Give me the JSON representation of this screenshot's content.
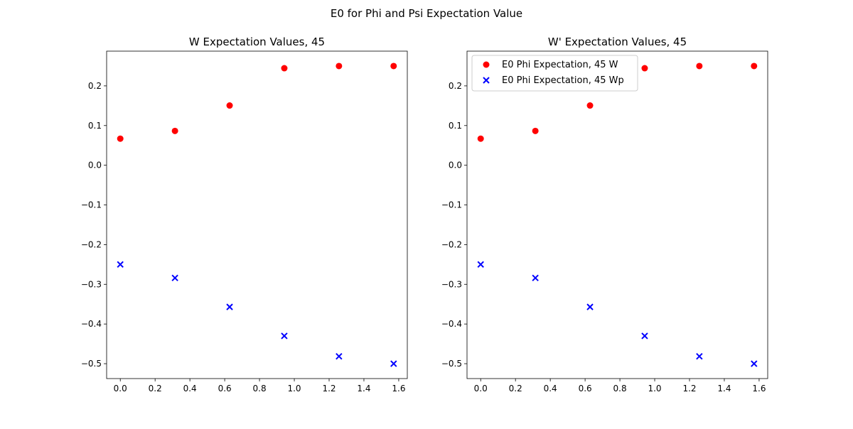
{
  "figure_title": "E0 for Phi and Psi Expectation Value",
  "chart_data": [
    {
      "type": "scatter",
      "title": "W Expectation Values, 45",
      "xlabel": "",
      "ylabel": "",
      "xlim": [
        -0.0785,
        1.6493
      ],
      "ylim": [
        -0.5375,
        0.2875
      ],
      "xticks": [
        "0.0",
        "0.2",
        "0.4",
        "0.6",
        "0.8",
        "1.0",
        "1.2",
        "1.4",
        "1.6"
      ],
      "yticks": [
        "0.2",
        "0.1",
        "0.0",
        "−0.1",
        "−0.2",
        "−0.3",
        "−0.4",
        "−0.5"
      ],
      "grid": false,
      "legend": null,
      "series": [
        {
          "marker": "circle",
          "color": "#ff0000",
          "x": [
            0.0,
            0.3142,
            0.6283,
            0.9425,
            1.2566,
            1.5708
          ],
          "y": [
            0.067,
            0.0865,
            0.1505,
            0.2445,
            0.25,
            0.25
          ]
        },
        {
          "marker": "x",
          "color": "#0000ff",
          "x": [
            0.0,
            0.3142,
            0.6283,
            0.9425,
            1.2566,
            1.5708
          ],
          "y": [
            -0.25,
            -0.284,
            -0.357,
            -0.43,
            -0.4815,
            -0.5
          ]
        }
      ]
    },
    {
      "type": "scatter",
      "title": "W' Expectation Values, 45",
      "xlabel": "",
      "ylabel": "",
      "xlim": [
        -0.0785,
        1.6493
      ],
      "ylim": [
        -0.5375,
        0.2875
      ],
      "xticks": [
        "0.0",
        "0.2",
        "0.4",
        "0.6",
        "0.8",
        "1.0",
        "1.2",
        "1.4",
        "1.6"
      ],
      "yticks": [
        "0.2",
        "0.1",
        "0.0",
        "−0.1",
        "−0.2",
        "−0.3",
        "−0.4",
        "−0.5"
      ],
      "grid": false,
      "legend": "top-left",
      "series": [
        {
          "name": "E0 Phi Expectation, 45 W",
          "marker": "circle",
          "color": "#ff0000",
          "x": [
            0.0,
            0.3142,
            0.6283,
            0.9425,
            1.2566,
            1.5708
          ],
          "y": [
            0.067,
            0.0865,
            0.1505,
            0.2445,
            0.25,
            0.25
          ]
        },
        {
          "name": "E0 Phi Expectation, 45 Wp",
          "marker": "x",
          "color": "#0000ff",
          "x": [
            0.0,
            0.3142,
            0.6283,
            0.9425,
            1.2566,
            1.5708
          ],
          "y": [
            -0.25,
            -0.284,
            -0.357,
            -0.43,
            -0.4815,
            -0.5
          ]
        }
      ]
    }
  ]
}
